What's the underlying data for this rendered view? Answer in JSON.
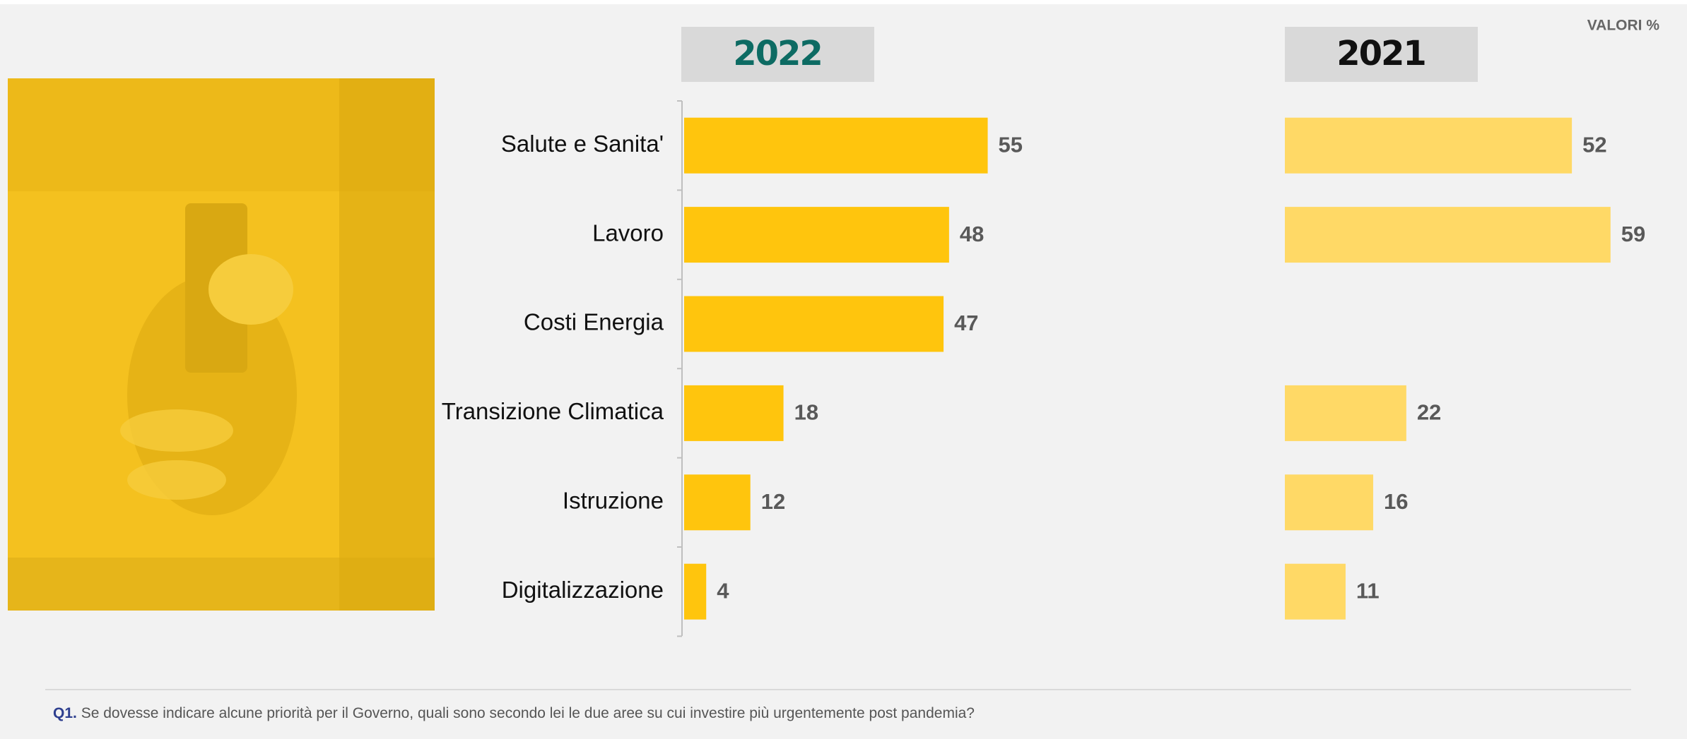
{
  "valori_label": "VALORI %",
  "chart_data": [
    {
      "type": "bar",
      "title": "2022",
      "categories": [
        "Salute e Sanita'",
        "Lavoro",
        "Costi Energia",
        "Transizione Climatica",
        "Istruzione",
        "Digitalizzazione"
      ],
      "values": [
        55,
        48,
        47,
        18,
        12,
        4
      ],
      "color": "#ffc50d",
      "title_color": "#0d6b63"
    },
    {
      "type": "bar",
      "title": "2021",
      "values": [
        52,
        59,
        null,
        22,
        16,
        11
      ],
      "color": "#ffd966",
      "title_color": "#111111"
    }
  ],
  "footnote": {
    "label": "Q1.",
    "text": "Se dovesse indicare alcune priorità per il Governo, quali sono secondo lei le due aree su cui investire più urgentemente post pandemia?"
  }
}
